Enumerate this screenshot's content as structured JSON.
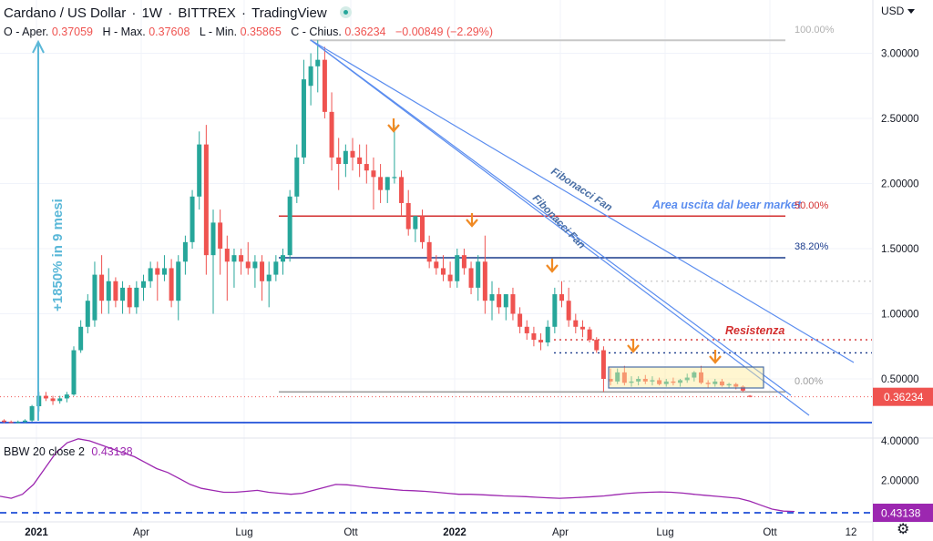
{
  "header": {
    "symbol": "Cardano / US Dollar",
    "interval": "1W",
    "exchange": "BITTREX",
    "source": "TradingView"
  },
  "ohlc": {
    "open_label": "O - Aper.",
    "open": "0.37059",
    "high_label": "H - Max.",
    "high": "0.37608",
    "low_label": "L - Min.",
    "low": "0.35865",
    "close_label": "C - Chius.",
    "close": "0.36234",
    "change": "−0.00849 (−2.29%)"
  },
  "currency_label": "USD",
  "settings_icon": "gear-icon",
  "indicator": {
    "label": "BBW 20 close 2",
    "value": "0.43138"
  },
  "colors": {
    "up": "#26a69a",
    "down": "#ef5350",
    "fan": "#5b8def",
    "fib_text": "#9e9e9e",
    "blue_line": "#1a3b8c",
    "red_line": "#d32f2f",
    "annotation": "#5bb8d8",
    "arrow": "#f08a24",
    "bbw": "#9c27b0",
    "baseline": "#1e4fd8"
  },
  "chart_data": {
    "type": "candlestick",
    "price_axis": {
      "ticks": [
        "3.00000",
        "2.50000",
        "2.00000",
        "1.50000",
        "1.00000",
        "0.50000"
      ],
      "ylim": [
        0.05,
        3.2
      ]
    },
    "indicator_axis": {
      "ticks": [
        "4.00000",
        "2.00000"
      ],
      "ylim": [
        0,
        6
      ]
    },
    "time_axis": {
      "ticks": [
        "2021",
        "Apr",
        "Lug",
        "Ott",
        "2022",
        "Apr",
        "Lug",
        "Ott",
        "12"
      ]
    },
    "last_price": "0.36234",
    "last_indicator": "0.43138",
    "candles": [
      [
        0.18,
        0.19,
        0.16,
        0.17
      ],
      [
        0.17,
        0.18,
        0.16,
        0.165
      ],
      [
        0.165,
        0.18,
        0.16,
        0.17
      ],
      [
        0.17,
        0.19,
        0.16,
        0.18
      ],
      [
        0.18,
        0.3,
        0.17,
        0.29
      ],
      [
        0.29,
        0.4,
        0.25,
        0.37
      ],
      [
        0.37,
        0.4,
        0.33,
        0.35
      ],
      [
        0.35,
        0.37,
        0.3,
        0.33
      ],
      [
        0.33,
        0.37,
        0.31,
        0.35
      ],
      [
        0.35,
        0.4,
        0.32,
        0.38
      ],
      [
        0.38,
        0.75,
        0.37,
        0.72
      ],
      [
        0.72,
        0.95,
        0.7,
        0.9
      ],
      [
        0.9,
        1.15,
        0.85,
        1.1
      ],
      [
        0.95,
        1.4,
        0.9,
        1.3
      ],
      [
        1.3,
        1.45,
        1.0,
        1.1
      ],
      [
        1.1,
        1.35,
        1.0,
        1.25
      ],
      [
        1.25,
        1.28,
        1.05,
        1.1
      ],
      [
        1.1,
        1.25,
        1.0,
        1.2
      ],
      [
        1.2,
        1.22,
        1.0,
        1.05
      ],
      [
        1.05,
        1.25,
        1.0,
        1.2
      ],
      [
        1.2,
        1.3,
        1.1,
        1.25
      ],
      [
        1.25,
        1.4,
        1.2,
        1.35
      ],
      [
        1.35,
        1.4,
        1.1,
        1.3
      ],
      [
        1.3,
        1.45,
        1.25,
        1.35
      ],
      [
        1.35,
        1.42,
        1.05,
        1.1
      ],
      [
        1.1,
        1.45,
        0.95,
        1.4
      ],
      [
        1.4,
        1.6,
        1.3,
        1.55
      ],
      [
        1.55,
        1.95,
        1.5,
        1.9
      ],
      [
        1.9,
        2.4,
        1.8,
        2.3
      ],
      [
        2.3,
        2.45,
        1.3,
        1.45
      ],
      [
        1.45,
        1.8,
        1.0,
        1.7
      ],
      [
        1.7,
        1.8,
        1.3,
        1.5
      ],
      [
        1.5,
        1.6,
        1.1,
        1.4
      ],
      [
        1.4,
        1.5,
        1.2,
        1.45
      ],
      [
        1.45,
        1.5,
        1.3,
        1.4
      ],
      [
        1.4,
        1.55,
        1.3,
        1.35
      ],
      [
        1.35,
        1.45,
        1.2,
        1.4
      ],
      [
        1.4,
        1.45,
        1.1,
        1.25
      ],
      [
        1.25,
        1.4,
        1.05,
        1.3
      ],
      [
        1.3,
        1.45,
        1.25,
        1.4
      ],
      [
        1.4,
        1.5,
        1.3,
        1.45
      ],
      [
        1.45,
        1.95,
        1.4,
        1.9
      ],
      [
        1.9,
        2.3,
        1.85,
        2.2
      ],
      [
        2.2,
        2.95,
        2.15,
        2.8
      ],
      [
        2.75,
        3.0,
        2.6,
        2.9
      ],
      [
        2.9,
        3.1,
        2.7,
        2.95
      ],
      [
        2.95,
        3.05,
        2.5,
        2.55
      ],
      [
        2.55,
        2.7,
        2.1,
        2.2
      ],
      [
        2.2,
        2.35,
        1.95,
        2.15
      ],
      [
        2.15,
        2.3,
        2.05,
        2.25
      ],
      [
        2.25,
        2.35,
        2.1,
        2.2
      ],
      [
        2.2,
        2.3,
        2.05,
        2.15
      ],
      [
        2.15,
        2.3,
        2.0,
        2.1
      ],
      [
        2.1,
        2.2,
        1.8,
        2.05
      ],
      [
        2.05,
        2.15,
        1.85,
        1.95
      ],
      [
        1.95,
        2.05,
        1.85,
        2.05
      ],
      [
        2.05,
        2.45,
        2.0,
        2.05
      ],
      [
        2.05,
        2.1,
        1.75,
        1.85
      ],
      [
        1.85,
        1.95,
        1.6,
        1.65
      ],
      [
        1.65,
        1.75,
        1.55,
        1.75
      ],
      [
        1.75,
        1.8,
        1.5,
        1.55
      ],
      [
        1.55,
        1.6,
        1.35,
        1.4
      ],
      [
        1.4,
        1.45,
        1.3,
        1.35
      ],
      [
        1.35,
        1.45,
        1.25,
        1.3
      ],
      [
        1.3,
        1.4,
        1.2,
        1.25
      ],
      [
        1.25,
        1.5,
        1.2,
        1.45
      ],
      [
        1.45,
        1.5,
        1.3,
        1.35
      ],
      [
        1.35,
        1.4,
        1.15,
        1.2
      ],
      [
        1.2,
        1.45,
        1.1,
        1.4
      ],
      [
        1.4,
        1.6,
        1.0,
        1.1
      ],
      [
        1.1,
        1.25,
        0.95,
        1.15
      ],
      [
        1.15,
        1.2,
        1.0,
        1.05
      ],
      [
        1.05,
        1.15,
        0.95,
        1.15
      ],
      [
        1.15,
        1.2,
        0.95,
        1.0
      ],
      [
        1.0,
        1.05,
        0.85,
        0.9
      ],
      [
        0.9,
        0.95,
        0.8,
        0.85
      ],
      [
        0.85,
        0.9,
        0.75,
        0.8
      ],
      [
        0.8,
        0.85,
        0.72,
        0.78
      ],
      [
        0.78,
        0.95,
        0.75,
        0.9
      ],
      [
        0.9,
        1.2,
        0.85,
        1.15
      ],
      [
        1.15,
        1.25,
        1.05,
        1.1
      ],
      [
        1.1,
        1.2,
        0.9,
        0.95
      ],
      [
        0.95,
        1.0,
        0.85,
        0.9
      ],
      [
        0.9,
        0.95,
        0.82,
        0.88
      ],
      [
        0.88,
        0.9,
        0.78,
        0.8
      ],
      [
        0.8,
        0.82,
        0.7,
        0.72
      ],
      [
        0.72,
        0.75,
        0.4,
        0.5
      ],
      [
        0.5,
        0.58,
        0.45,
        0.48
      ],
      [
        0.48,
        0.58,
        0.46,
        0.55
      ],
      [
        0.55,
        0.6,
        0.45,
        0.47
      ],
      [
        0.47,
        0.52,
        0.44,
        0.48
      ],
      [
        0.48,
        0.52,
        0.45,
        0.5
      ],
      [
        0.5,
        0.53,
        0.46,
        0.48
      ],
      [
        0.48,
        0.52,
        0.45,
        0.49
      ],
      [
        0.49,
        0.51,
        0.45,
        0.46
      ],
      [
        0.46,
        0.5,
        0.44,
        0.48
      ],
      [
        0.48,
        0.51,
        0.45,
        0.47
      ],
      [
        0.47,
        0.5,
        0.44,
        0.49
      ],
      [
        0.49,
        0.54,
        0.47,
        0.51
      ],
      [
        0.51,
        0.56,
        0.48,
        0.55
      ],
      [
        0.55,
        0.6,
        0.46,
        0.47
      ],
      [
        0.47,
        0.49,
        0.43,
        0.46
      ],
      [
        0.46,
        0.5,
        0.44,
        0.48
      ],
      [
        0.48,
        0.5,
        0.44,
        0.45
      ],
      [
        0.45,
        0.47,
        0.43,
        0.46
      ],
      [
        0.46,
        0.47,
        0.42,
        0.44
      ],
      [
        0.44,
        0.45,
        0.4,
        0.41
      ],
      [
        0.37059,
        0.37608,
        0.35865,
        0.36234
      ]
    ],
    "bbw_series": [
      1.2,
      1.1,
      1.3,
      1.8,
      2.6,
      3.4,
      3.9,
      4.1,
      4.0,
      3.8,
      3.6,
      3.4,
      3.2,
      2.9,
      2.6,
      2.4,
      2.1,
      1.8,
      1.6,
      1.5,
      1.4,
      1.4,
      1.45,
      1.5,
      1.4,
      1.35,
      1.3,
      1.35,
      1.5,
      1.65,
      1.8,
      1.78,
      1.72,
      1.65,
      1.6,
      1.55,
      1.5,
      1.48,
      1.45,
      1.4,
      1.35,
      1.3,
      1.3,
      1.28,
      1.25,
      1.22,
      1.2,
      1.18,
      1.15,
      1.12,
      1.1,
      1.12,
      1.15,
      1.18,
      1.22,
      1.28,
      1.34,
      1.38,
      1.4,
      1.42,
      1.4,
      1.36,
      1.3,
      1.25,
      1.2,
      1.15,
      1.1,
      0.95,
      0.75,
      0.55,
      0.45,
      0.43138
    ],
    "fibonacci_levels": [
      {
        "label": "100.00%",
        "price": 3.1
      },
      {
        "label": "50.00%",
        "price": 1.75
      },
      {
        "label": "38.20%",
        "price": 1.43
      },
      {
        "label": "0.00%",
        "price": 0.4
      }
    ],
    "annotations": {
      "gain_label": "+1850% in 9 mesi",
      "fan_label_1": "Fibonacci Fan",
      "fan_label_2": "Fibonacci Fan",
      "bear_exit": "Area uscita dal bear market",
      "resistance": "Resistenza"
    }
  }
}
